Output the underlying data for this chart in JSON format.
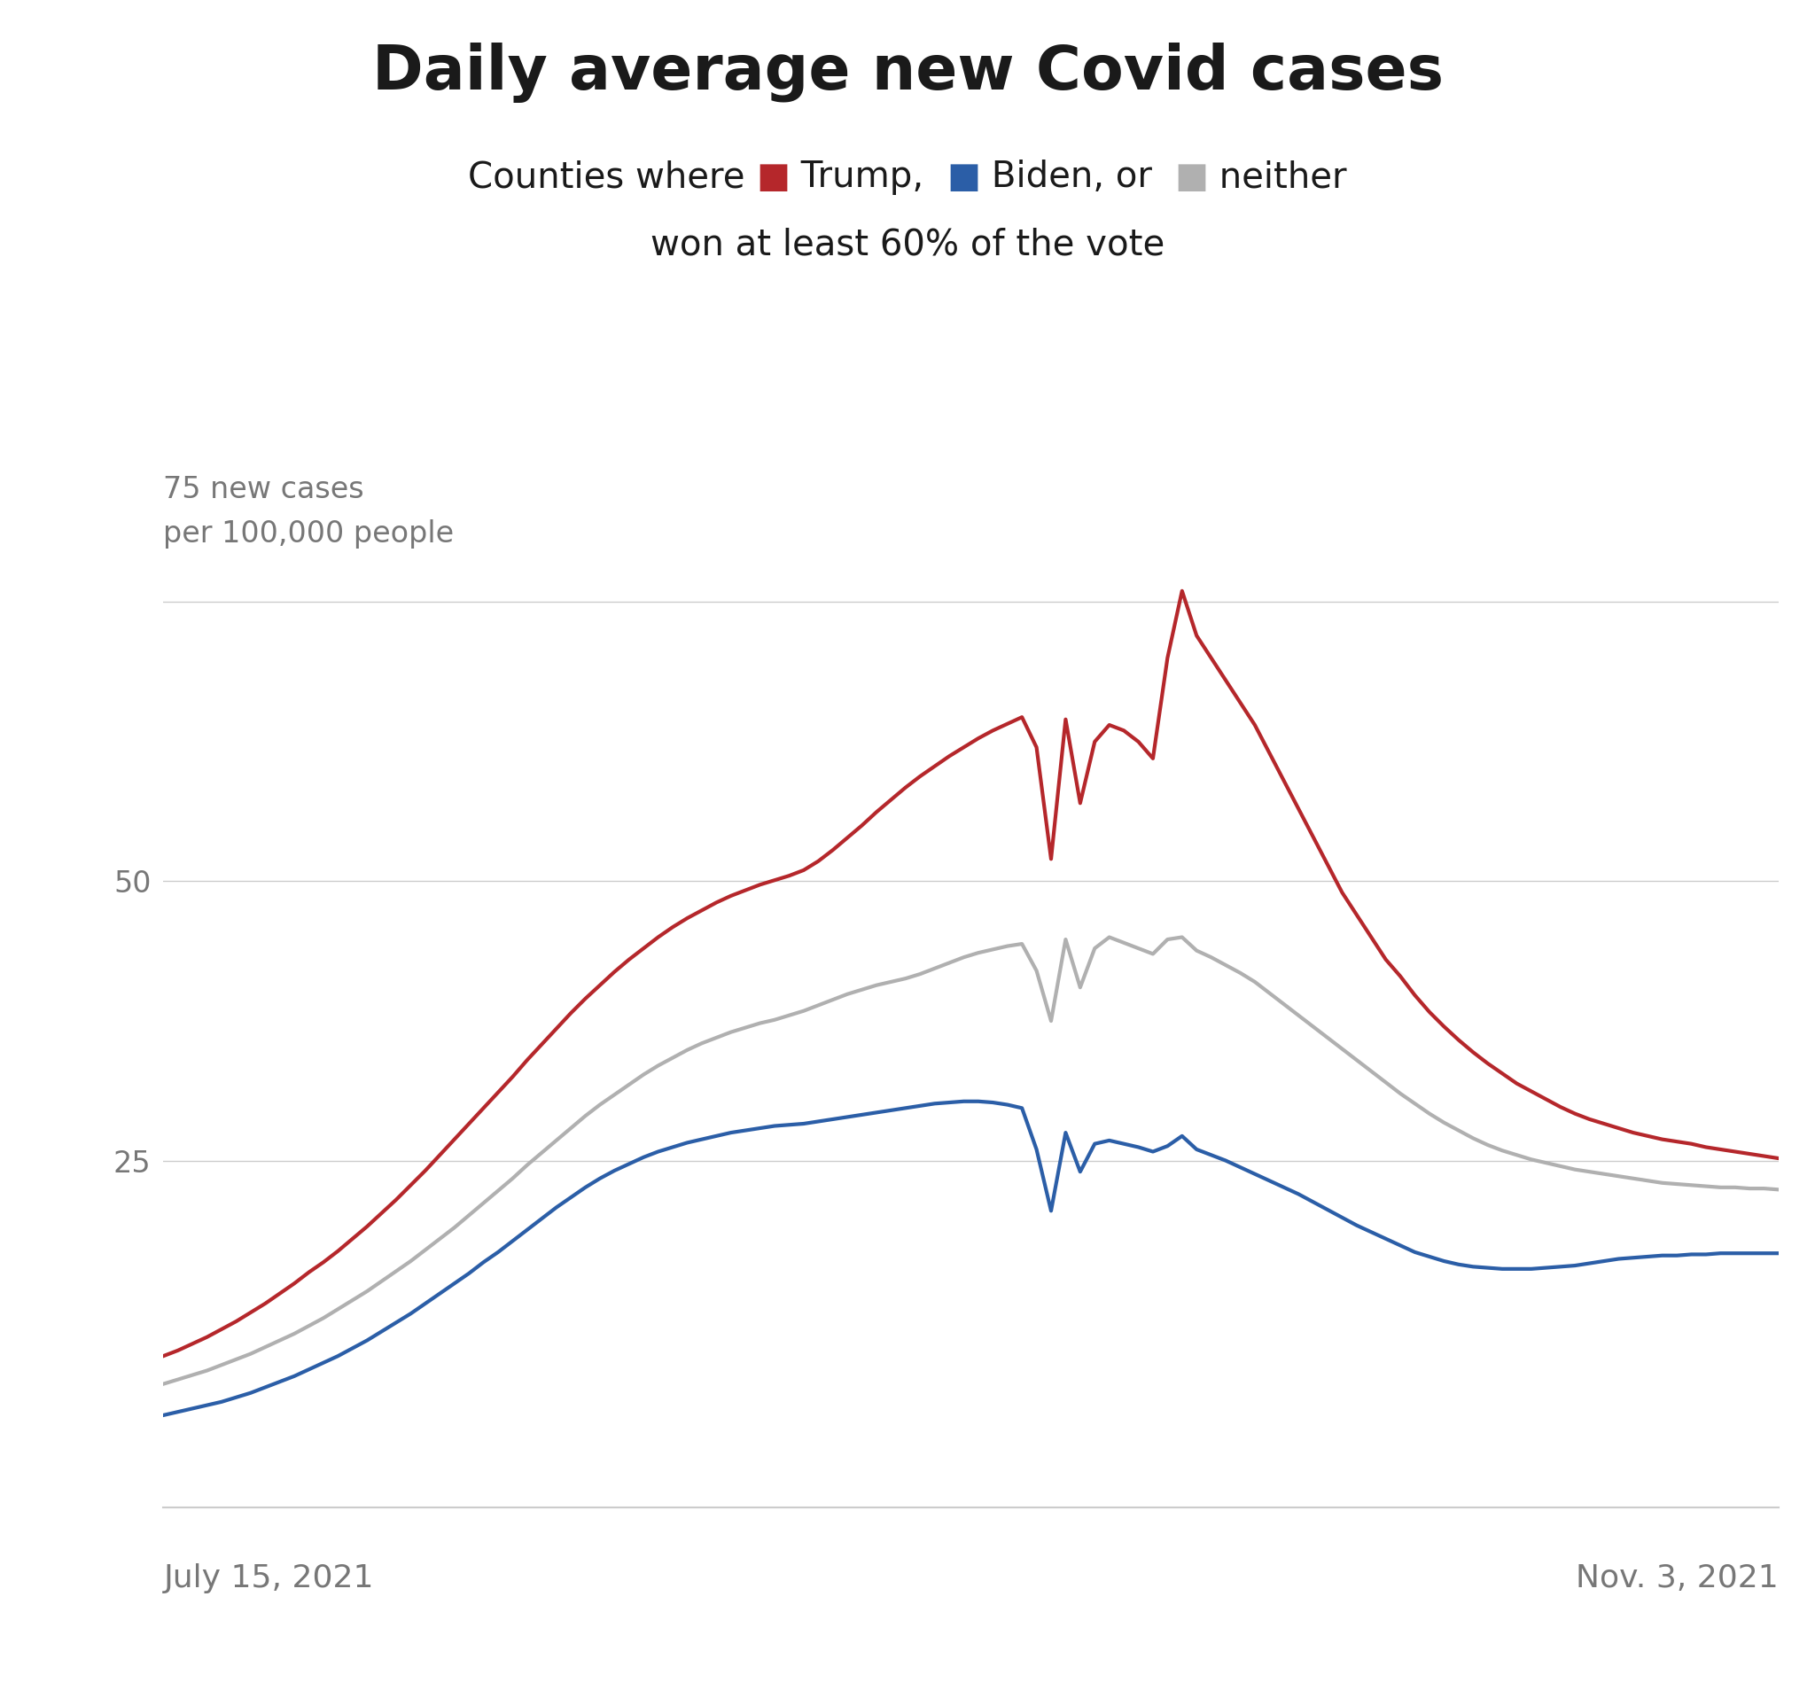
{
  "title": "Daily average new Covid cases",
  "subtitle_line1_plain": "Counties where",
  "subtitle_line2": "won at least 60% of the vote",
  "legend_labels": [
    "Trump,",
    "Biden, or",
    "neither"
  ],
  "ylabel_line1": "75 new cases",
  "ylabel_line2": "per 100,000 people",
  "date_left": "July 15, 2021",
  "date_right": "Nov. 3, 2021",
  "yticks": [
    25,
    50,
    75
  ],
  "ylim": [
    -5,
    82
  ],
  "xlim": [
    0,
    111
  ],
  "trump_color": "#b5272b",
  "biden_color": "#2b5ea7",
  "neither_color": "#b0b0b0",
  "background_color": "#ffffff",
  "grid_color": "#cccccc",
  "text_color": "#777777",
  "dark_text_color": "#1a1a1a",
  "line_width": 3.0,
  "title_fontsize": 50,
  "subtitle_fontsize": 29,
  "axis_label_fontsize": 24,
  "date_fontsize": 26,
  "trump_data": [
    7.5,
    8.0,
    8.6,
    9.2,
    9.9,
    10.6,
    11.4,
    12.2,
    13.1,
    14.0,
    15.0,
    15.9,
    16.9,
    18.0,
    19.1,
    20.3,
    21.5,
    22.8,
    24.1,
    25.5,
    26.9,
    28.3,
    29.7,
    31.1,
    32.5,
    34.0,
    35.4,
    36.8,
    38.2,
    39.5,
    40.7,
    41.9,
    43.0,
    44.0,
    45.0,
    45.9,
    46.7,
    47.4,
    48.1,
    48.7,
    49.2,
    49.7,
    50.1,
    50.5,
    51.0,
    51.8,
    52.8,
    53.9,
    55.0,
    56.2,
    57.3,
    58.4,
    59.4,
    60.3,
    61.2,
    62.0,
    62.8,
    63.5,
    64.1,
    64.7,
    62.0,
    52.0,
    64.5,
    57.0,
    62.5,
    64.0,
    63.5,
    62.5,
    61.0,
    70.0,
    76.0,
    72.0,
    70.0,
    68.0,
    66.0,
    64.0,
    61.5,
    59.0,
    56.5,
    54.0,
    51.5,
    49.0,
    47.0,
    45.0,
    43.0,
    41.5,
    39.8,
    38.3,
    37.0,
    35.8,
    34.7,
    33.7,
    32.8,
    31.9,
    31.2,
    30.5,
    29.8,
    29.2,
    28.7,
    28.3,
    27.9,
    27.5,
    27.2,
    26.9,
    26.7,
    26.5,
    26.2,
    26.0,
    25.8,
    25.6,
    25.4,
    25.2
  ],
  "biden_data": [
    2.2,
    2.5,
    2.8,
    3.1,
    3.4,
    3.8,
    4.2,
    4.7,
    5.2,
    5.7,
    6.3,
    6.9,
    7.5,
    8.2,
    8.9,
    9.7,
    10.5,
    11.3,
    12.2,
    13.1,
    14.0,
    14.9,
    15.9,
    16.8,
    17.8,
    18.8,
    19.8,
    20.8,
    21.7,
    22.6,
    23.4,
    24.1,
    24.7,
    25.3,
    25.8,
    26.2,
    26.6,
    26.9,
    27.2,
    27.5,
    27.7,
    27.9,
    28.1,
    28.2,
    28.3,
    28.5,
    28.7,
    28.9,
    29.1,
    29.3,
    29.5,
    29.7,
    29.9,
    30.1,
    30.2,
    30.3,
    30.3,
    30.2,
    30.0,
    29.7,
    26.0,
    20.5,
    27.5,
    24.0,
    26.5,
    26.8,
    26.5,
    26.2,
    25.8,
    26.3,
    27.2,
    26.0,
    25.5,
    25.0,
    24.4,
    23.8,
    23.2,
    22.6,
    22.0,
    21.3,
    20.6,
    19.9,
    19.2,
    18.6,
    18.0,
    17.4,
    16.8,
    16.4,
    16.0,
    15.7,
    15.5,
    15.4,
    15.3,
    15.3,
    15.3,
    15.4,
    15.5,
    15.6,
    15.8,
    16.0,
    16.2,
    16.3,
    16.4,
    16.5,
    16.5,
    16.6,
    16.6,
    16.7,
    16.7,
    16.7,
    16.7,
    16.7
  ],
  "neither_data": [
    5.0,
    5.4,
    5.8,
    6.2,
    6.7,
    7.2,
    7.7,
    8.3,
    8.9,
    9.5,
    10.2,
    10.9,
    11.7,
    12.5,
    13.3,
    14.2,
    15.1,
    16.0,
    17.0,
    18.0,
    19.0,
    20.1,
    21.2,
    22.3,
    23.4,
    24.6,
    25.7,
    26.8,
    27.9,
    29.0,
    30.0,
    30.9,
    31.8,
    32.7,
    33.5,
    34.2,
    34.9,
    35.5,
    36.0,
    36.5,
    36.9,
    37.3,
    37.6,
    38.0,
    38.4,
    38.9,
    39.4,
    39.9,
    40.3,
    40.7,
    41.0,
    41.3,
    41.7,
    42.2,
    42.7,
    43.2,
    43.6,
    43.9,
    44.2,
    44.4,
    42.0,
    37.5,
    44.8,
    40.5,
    44.0,
    45.0,
    44.5,
    44.0,
    43.5,
    44.8,
    45.0,
    43.8,
    43.2,
    42.5,
    41.8,
    41.0,
    40.0,
    39.0,
    38.0,
    37.0,
    36.0,
    35.0,
    34.0,
    33.0,
    32.0,
    31.0,
    30.1,
    29.2,
    28.4,
    27.7,
    27.0,
    26.4,
    25.9,
    25.5,
    25.1,
    24.8,
    24.5,
    24.2,
    24.0,
    23.8,
    23.6,
    23.4,
    23.2,
    23.0,
    22.9,
    22.8,
    22.7,
    22.6,
    22.6,
    22.5,
    22.5,
    22.4
  ]
}
